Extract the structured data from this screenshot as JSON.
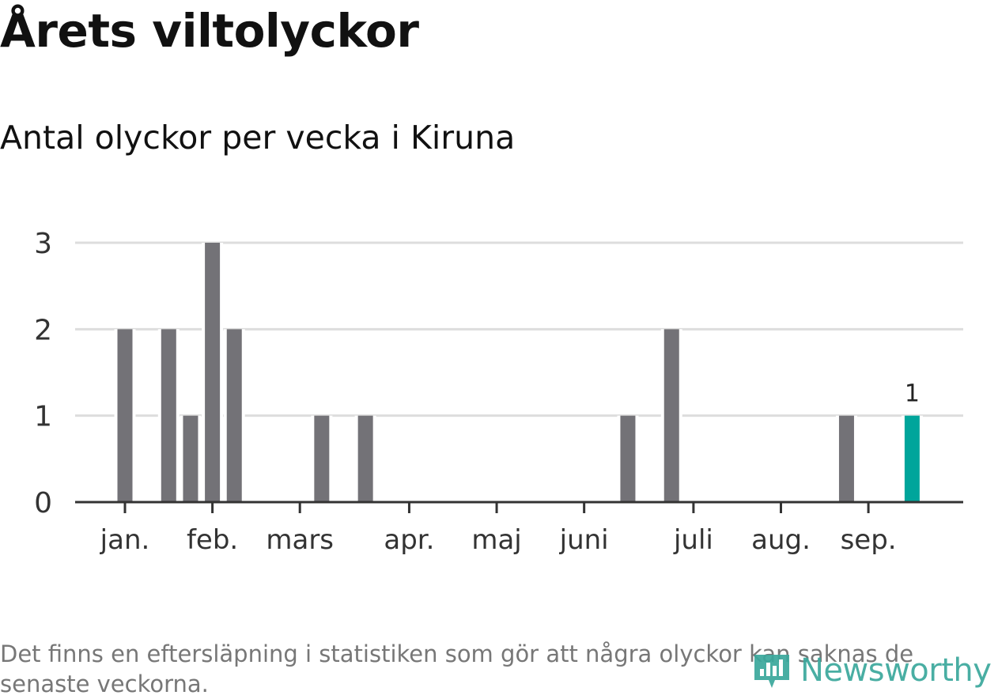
{
  "title": "Årets viltolyckor",
  "subtitle": "Antal olyckor per vecka i Kiruna",
  "footnote": "Det finns en eftersläpning i statistiken som gör att några olyckor kan saknas de senaste veckorna.",
  "logo": {
    "text": "Newsworthy",
    "icon": "bar-chart-logo-icon",
    "color": "#3aa89c"
  },
  "colors": {
    "bar": "#737277",
    "highlight": "#00a59b",
    "grid": "#dddddd",
    "axis": "#333333",
    "text": "#333333"
  },
  "chart_data": {
    "type": "bar",
    "x_unit": "week",
    "x_range": [
      1,
      40
    ],
    "ylim": [
      0,
      3
    ],
    "yticks": [
      0,
      1,
      2,
      3
    ],
    "grid": true,
    "xticks": [
      {
        "label": "jan.",
        "week": 1
      },
      {
        "label": "feb.",
        "week": 5
      },
      {
        "label": "mars",
        "week": 9
      },
      {
        "label": "apr.",
        "week": 14
      },
      {
        "label": "maj",
        "week": 18
      },
      {
        "label": "juni",
        "week": 22
      },
      {
        "label": "juli",
        "week": 27
      },
      {
        "label": "aug.",
        "week": 31
      },
      {
        "label": "sep.",
        "week": 35
      }
    ],
    "series": [
      {
        "values": [
          {
            "week": 1,
            "value": 2
          },
          {
            "week": 3,
            "value": 2
          },
          {
            "week": 4,
            "value": 1
          },
          {
            "week": 5,
            "value": 3
          },
          {
            "week": 6,
            "value": 2
          },
          {
            "week": 10,
            "value": 1
          },
          {
            "week": 12,
            "value": 1
          },
          {
            "week": 24,
            "value": 1
          },
          {
            "week": 26,
            "value": 2
          },
          {
            "week": 34,
            "value": 1
          },
          {
            "week": 37,
            "value": 1,
            "highlight": true,
            "label": "1"
          }
        ]
      }
    ]
  }
}
